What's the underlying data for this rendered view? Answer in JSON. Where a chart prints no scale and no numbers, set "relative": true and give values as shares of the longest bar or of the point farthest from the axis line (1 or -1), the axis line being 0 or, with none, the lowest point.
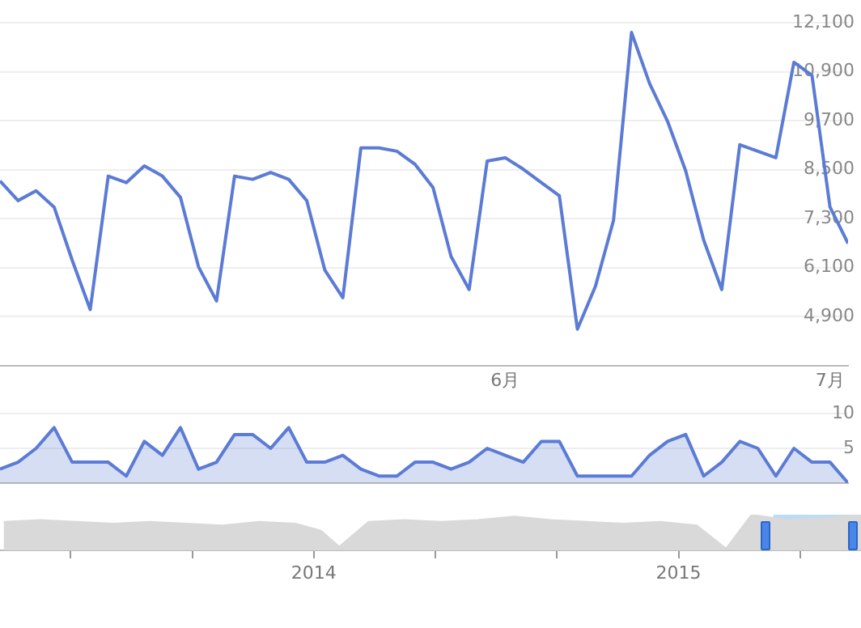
{
  "chart_data": [
    {
      "type": "line",
      "x": [
        "--05-19",
        "--05-20",
        "--05-21",
        "--05-22",
        "--05-23",
        "--05-24",
        "--05-25",
        "--05-26",
        "--05-27",
        "--05-28",
        "--05-29",
        "--05-30",
        "--05-31",
        "--06-01",
        "--06-02",
        "--06-03",
        "--06-04",
        "--06-05",
        "--06-06",
        "--06-07",
        "--06-08",
        "--06-09",
        "--06-10",
        "--06-11",
        "--06-12",
        "--06-13",
        "--06-14",
        "--06-15",
        "--06-16",
        "--06-17",
        "--06-18",
        "--06-19",
        "--06-20",
        "--06-21",
        "--06-22",
        "--06-23",
        "--06-24",
        "--06-25",
        "--06-26",
        "--06-27",
        "--06-28",
        "--06-29",
        "--06-30",
        "--07-01",
        "--07-02",
        "--07-03",
        "--07-04",
        "--07-05"
      ],
      "series": [
        {
          "color": "#5b7bd5",
          "values": [
            8220,
            7740,
            7980,
            7580,
            6280,
            5070,
            8340,
            8180,
            8590,
            8340,
            7820,
            6120,
            5280,
            8340,
            8260,
            8430,
            8260,
            7740,
            6040,
            5360,
            9030,
            9030,
            8950,
            8630,
            8060,
            6370,
            5560,
            8710,
            8790,
            8510,
            8180,
            7860,
            4590,
            5640,
            7250,
            11860,
            10610,
            9680,
            8470,
            6770,
            5560,
            9110,
            8950,
            8790,
            11130,
            10810,
            7580,
            6690
          ]
        }
      ],
      "xlim": [
        "--05-19",
        "--07-05"
      ],
      "xticks": [
        {
          "value": "--06-16",
          "label": "6月"
        },
        {
          "value": "--07-04",
          "label": "7月"
        }
      ],
      "ylim": [
        3700,
        12100
      ],
      "yticks": [
        {
          "value": 4900,
          "label": "4,900"
        },
        {
          "value": 6100,
          "label": "6,100"
        },
        {
          "value": 7300,
          "label": "7,300"
        },
        {
          "value": 8500,
          "label": "8,500"
        },
        {
          "value": 9700,
          "label": "9,700"
        },
        {
          "value": 10900,
          "label": "10,900"
        },
        {
          "value": 12100,
          "label": "12,100"
        }
      ],
      "grid": "y"
    },
    {
      "type": "area",
      "x": [
        "--05-19",
        "--05-20",
        "--05-21",
        "--05-22",
        "--05-23",
        "--05-24",
        "--05-25",
        "--05-26",
        "--05-27",
        "--05-28",
        "--05-29",
        "--05-30",
        "--05-31",
        "--06-01",
        "--06-02",
        "--06-03",
        "--06-04",
        "--06-05",
        "--06-06",
        "--06-07",
        "--06-08",
        "--06-09",
        "--06-10",
        "--06-11",
        "--06-12",
        "--06-13",
        "--06-14",
        "--06-15",
        "--06-16",
        "--06-17",
        "--06-18",
        "--06-19",
        "--06-20",
        "--06-21",
        "--06-22",
        "--06-23",
        "--06-24",
        "--06-25",
        "--06-26",
        "--06-27",
        "--06-28",
        "--06-29",
        "--06-30",
        "--07-01",
        "--07-02",
        "--07-03",
        "--07-04",
        "--07-05"
      ],
      "series": [
        {
          "color": "#5b7bd5",
          "values": [
            2,
            3,
            5,
            8,
            3,
            3,
            3,
            1,
            6,
            4,
            8,
            2,
            3,
            7,
            7,
            5,
            8,
            3,
            3,
            4,
            2,
            1,
            1,
            3,
            3,
            2,
            3,
            5,
            4,
            3,
            6,
            6,
            1,
            1,
            1,
            1,
            4,
            6,
            7,
            1,
            3,
            6,
            5,
            1,
            5,
            3,
            3,
            0
          ]
        }
      ],
      "xlim": [
        "--05-19",
        "--07-05"
      ],
      "ylim": [
        0,
        10
      ],
      "yticks": [
        5,
        10
      ],
      "grid": "y",
      "tick_labels": "y"
    },
    {
      "type": "area",
      "relative": true,
      "x": [
        2013.15,
        2013.25,
        2013.35,
        2013.45,
        2013.55,
        2013.65,
        2013.75,
        2013.85,
        2013.95,
        2014.02,
        2014.07,
        2014.15,
        2014.25,
        2014.35,
        2014.45,
        2014.55,
        2014.65,
        2014.75,
        2014.85,
        2014.95,
        2015.05,
        2015.13,
        2015.2,
        2015.3,
        2015.4,
        2015.5
      ],
      "series": [
        {
          "color": "#d9d9d9",
          "values": [
            0.8,
            0.85,
            0.8,
            0.75,
            0.8,
            0.75,
            0.7,
            0.8,
            0.75,
            0.55,
            0.1,
            0.8,
            0.85,
            0.8,
            0.85,
            0.95,
            0.85,
            0.8,
            0.75,
            0.8,
            0.7,
            0.05,
            1,
            0.85,
            0.9,
            1
          ]
        }
      ],
      "xlim": [
        2013.14,
        2015.5
      ],
      "xticks": [
        {
          "value": 2013.333,
          "label": null
        },
        {
          "value": 2013.667,
          "label": null
        },
        2014,
        {
          "value": 2014.333,
          "label": null
        },
        {
          "value": 2014.667,
          "label": null
        },
        2015,
        {
          "value": 2015.333,
          "label": null
        }
      ],
      "bands": [
        {
          "axis": "x",
          "from": 2015.26,
          "to": 2015.5,
          "color": "#bcdcf2"
        }
      ],
      "tick_labels": "x"
    }
  ]
}
